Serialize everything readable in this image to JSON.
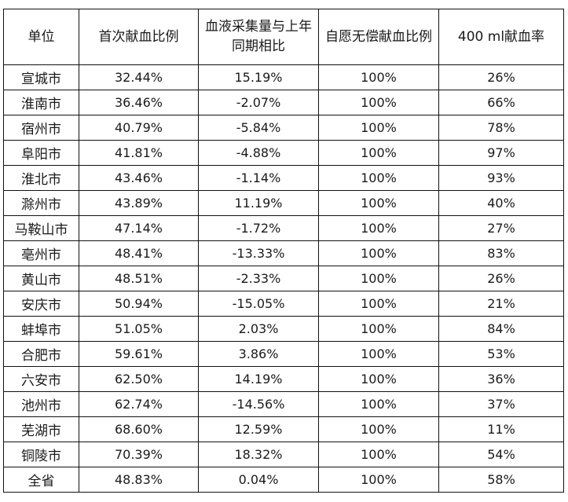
{
  "table": {
    "headers": [
      "单位",
      "首次献血比例",
      "血液采集量与上年同期相比",
      "自愿无偿献血比例",
      "400 ml献血率"
    ],
    "rows": [
      [
        "宣城市",
        "32.44%",
        "15.19%",
        "100%",
        "26%"
      ],
      [
        "淮南市",
        "36.46%",
        "-2.07%",
        "100%",
        "66%"
      ],
      [
        "宿州市",
        "40.79%",
        "-5.84%",
        "100%",
        "78%"
      ],
      [
        "阜阳市",
        "41.81%",
        "-4.88%",
        "100%",
        "97%"
      ],
      [
        "淮北市",
        "43.46%",
        "-1.14%",
        "100%",
        "93%"
      ],
      [
        "滁州市",
        "43.89%",
        "11.19%",
        "100%",
        "40%"
      ],
      [
        "马鞍山市",
        "47.14%",
        "-1.72%",
        "100%",
        "27%"
      ],
      [
        "亳州市",
        "48.41%",
        "-13.33%",
        "100%",
        "83%"
      ],
      [
        "黄山市",
        "48.51%",
        "-2.33%",
        "100%",
        "26%"
      ],
      [
        "安庆市",
        "50.94%",
        "-15.05%",
        "100%",
        "21%"
      ],
      [
        "蚌埠市",
        "51.05%",
        "2.03%",
        "100%",
        "84%"
      ],
      [
        "合肥市",
        "59.61%",
        "3.86%",
        "100%",
        "53%"
      ],
      [
        "六安市",
        "62.50%",
        "14.19%",
        "100%",
        "36%"
      ],
      [
        "池州市",
        "62.74%",
        "-14.56%",
        "100%",
        "37%"
      ],
      [
        "芜湖市",
        "68.60%",
        "12.59%",
        "100%",
        "11%"
      ],
      [
        "铜陵市",
        "70.39%",
        "18.32%",
        "100%",
        "54%"
      ],
      [
        "全省",
        "48.83%",
        "0.04%",
        "100%",
        "58%"
      ]
    ]
  }
}
